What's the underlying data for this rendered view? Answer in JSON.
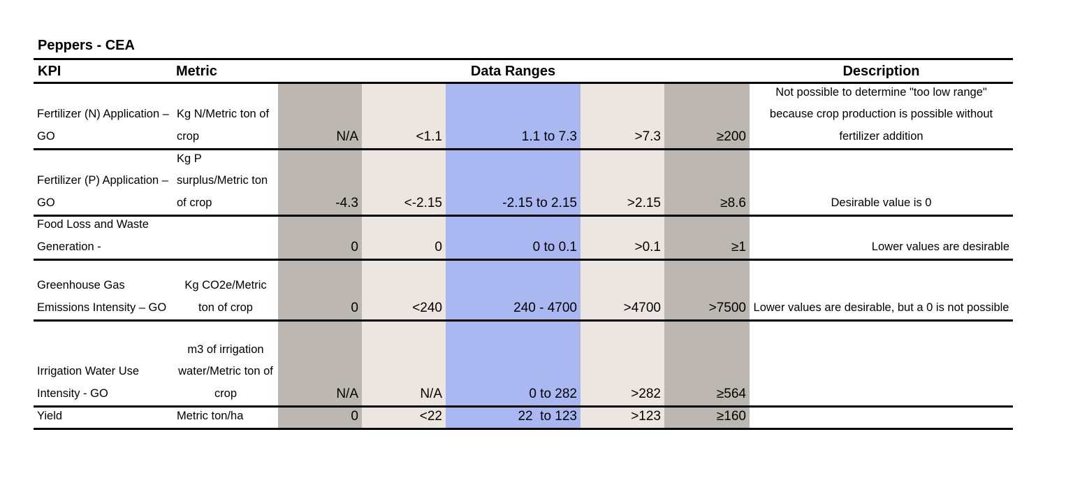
{
  "title": "Peppers - CEA",
  "headers": [
    "KPI",
    "Metric",
    "Data Ranges",
    "Description"
  ],
  "rows": [
    {
      "kpi": "Fertilizer (N) Application – GO",
      "metric": "Kg N/Metric ton of crop",
      "ranges": [
        "N/A",
        "<1.1",
        "1.1 to 7.3",
        ">7.3",
        "≥200"
      ],
      "description": "Not possible to determine \"too low range\" because crop production is possible without fertilizer addition"
    },
    {
      "kpi": "Fertilizer (P) Application – GO",
      "metric": "Kg P surplus/Metric ton of crop",
      "ranges": [
        "-4.3",
        "<-2.15",
        "-2.15 to 2.15",
        ">2.15",
        "≥8.6"
      ],
      "description": "Desirable value is 0"
    },
    {
      "kpi": "Food Loss and Waste Generation -",
      "ranges": [
        "0",
        "0",
        "0 to 0.1",
        ">0.1",
        "≥1"
      ],
      "description": "Lower values are desirable"
    },
    {
      "kpi": "Greenhouse Gas Emissions Intensity – GO",
      "metric": "Kg CO2e/Metric ton of crop",
      "ranges": [
        "0",
        "<240",
        "240 - 4700",
        ">4700",
        ">7500"
      ],
      "description": "Lower values are desirable, but a 0 is not possible"
    },
    {
      "kpi": "Irrigation Water Use Intensity - GO",
      "metric": "m3 of irrigation water/Metric ton of crop",
      "ranges": [
        "N/A",
        "N/A",
        "0 to 282",
        ">282",
        "≥564"
      ]
    },
    {
      "kpi": "Yield",
      "metric": "Metric ton/ha",
      "ranges": [
        "0",
        "<22",
        "22  to 123",
        ">123",
        "≥160"
      ]
    }
  ]
}
